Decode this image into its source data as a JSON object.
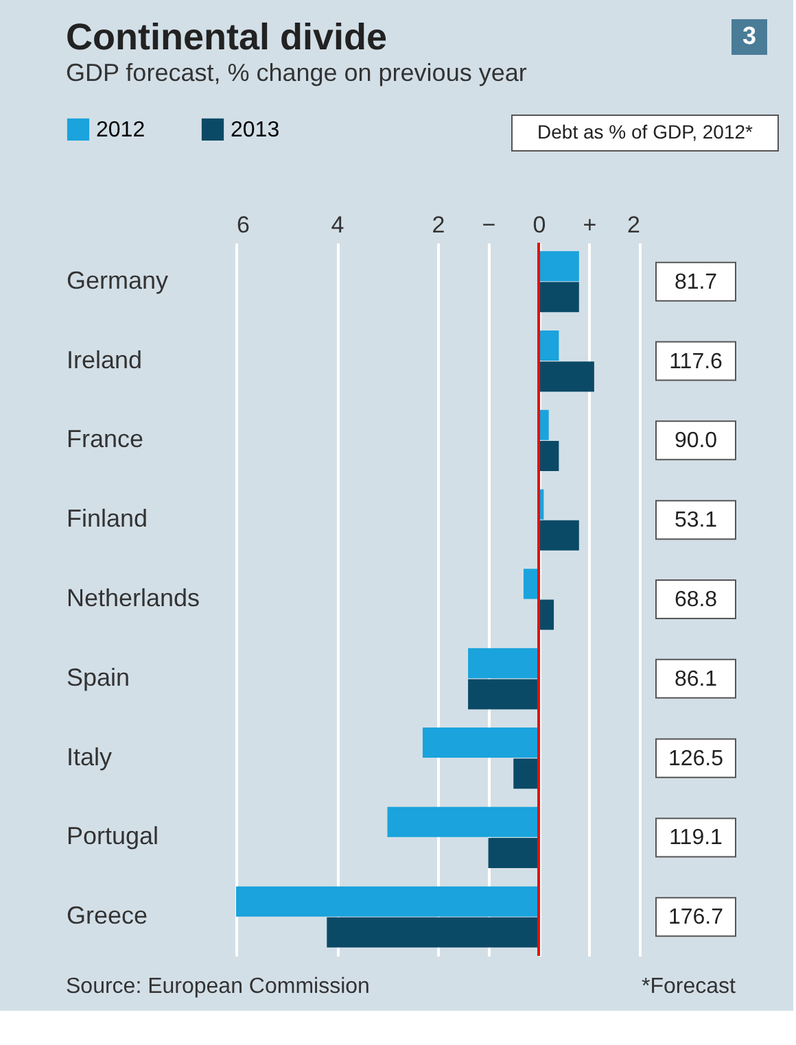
{
  "chart_data": {
    "type": "bar",
    "orientation": "horizontal",
    "title": "Continental divide",
    "subtitle": "GDP forecast, % change on previous year",
    "categories": [
      "Germany",
      "Ireland",
      "France",
      "Finland",
      "Netherlands",
      "Spain",
      "Italy",
      "Portugal",
      "Greece"
    ],
    "series": [
      {
        "name": "2012",
        "color": "#1aa3dc",
        "values": [
          0.8,
          0.4,
          0.2,
          0.1,
          -0.3,
          -1.4,
          -2.3,
          -3.0,
          -6.0
        ]
      },
      {
        "name": "2013",
        "color": "#0b4a66",
        "values": [
          0.8,
          1.1,
          0.4,
          0.8,
          0.3,
          -1.4,
          -0.5,
          -1.0,
          -4.2
        ]
      }
    ],
    "xlim": [
      -6,
      2
    ],
    "xticks": [
      {
        "value": -6,
        "label": "6"
      },
      {
        "value": -4,
        "label": "4"
      },
      {
        "value": -2,
        "label": "2"
      },
      {
        "value": -1,
        "label": "−"
      },
      0,
      {
        "value": 1,
        "label": "+"
      },
      2
    ],
    "grid": "x",
    "legend": "top left",
    "ref_lines": [
      {
        "axis": "x",
        "value": 0,
        "color": "#e3120b"
      }
    ],
    "annotations": [
      "3",
      "Debt as % of GDP, 2012*",
      "Source: European Commission",
      "*Forecast",
      "81.7",
      "117.6",
      "90.0",
      "53.1",
      "68.8",
      "86.1",
      "126.5",
      "119.1",
      "176.7"
    ]
  }
}
